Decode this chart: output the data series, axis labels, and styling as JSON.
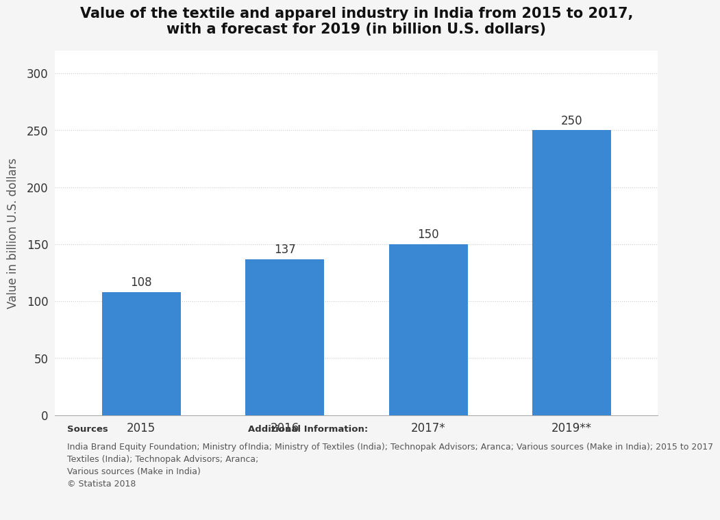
{
  "title_line1": "Value of the textile and apparel industry in India from 2015 to 2017,",
  "title_line2": "with a forecast for 2019 (in billion U.S. dollars)",
  "categories": [
    "2015",
    "2016",
    "2017*",
    "2019**"
  ],
  "values": [
    108,
    137,
    150,
    250
  ],
  "bar_color": "#3a87d4",
  "ylabel": "Value in billion U.S. dollars",
  "ylim": [
    0,
    320
  ],
  "yticks": [
    0,
    50,
    100,
    150,
    200,
    250,
    300
  ],
  "grid_color": "#cccccc",
  "bg_color": "#f5f5f5",
  "plot_bg_color": "#ffffff",
  "title_fontsize": 15,
  "label_fontsize": 12,
  "tick_fontsize": 12,
  "bar_label_fontsize": 12,
  "sources_title": "Sources",
  "sources_text": "India Brand Equity Foundation; Ministry of\nTextiles (India); Technopak Advisors; Aranca;\nVarious sources (Make in India)\n© Statista 2018",
  "additional_title": "Additional Information:",
  "additional_text": "India; Ministry of Textiles (India); Technopak Advisors; Aranca; Various sources (Make in India); 2015 to 2017",
  "footer_fontsize": 9,
  "footer_bg_color": "#e8e8e8"
}
